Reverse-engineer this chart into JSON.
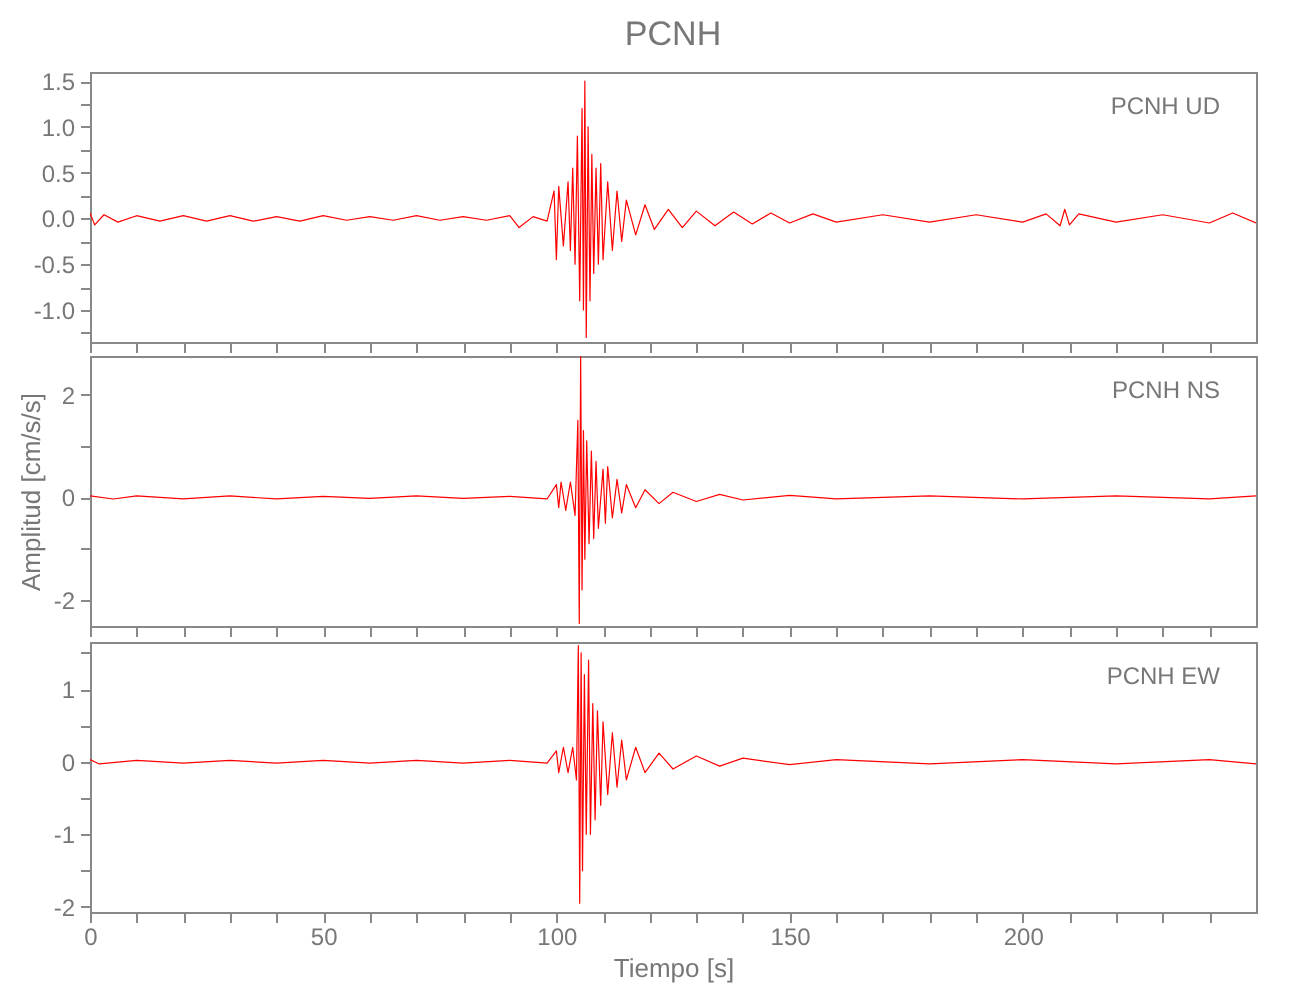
{
  "chart_data": [
    {
      "type": "line",
      "title": "PCNH",
      "annotations": [
        "PCNH UD"
      ],
      "tick_labels": "y",
      "xlim": [
        0,
        250
      ],
      "xticks": [
        0,
        {
          "value": 10,
          "label": null
        },
        {
          "value": 20,
          "label": null
        },
        {
          "value": 30,
          "label": null
        },
        {
          "value": 40,
          "label": null
        },
        50,
        {
          "value": 60,
          "label": null
        },
        {
          "value": 70,
          "label": null
        },
        {
          "value": 80,
          "label": null
        },
        {
          "value": 90,
          "label": null
        },
        100,
        {
          "value": 110,
          "label": null
        },
        {
          "value": 120,
          "label": null
        },
        {
          "value": 130,
          "label": null
        },
        {
          "value": 140,
          "label": null
        },
        150,
        {
          "value": 160,
          "label": null
        },
        {
          "value": 170,
          "label": null
        },
        {
          "value": 180,
          "label": null
        },
        {
          "value": 190,
          "label": null
        },
        200,
        {
          "value": 210,
          "label": null
        },
        {
          "value": 220,
          "label": null
        },
        {
          "value": 230,
          "label": null
        },
        {
          "value": 240,
          "label": null
        }
      ],
      "ylim": [
        -1.35,
        1.6
      ],
      "yticks": [
        {
          "value": -1.25,
          "label": null
        },
        {
          "value": -1,
          "label": "-1.0"
        },
        {
          "value": -0.75,
          "label": null
        },
        {
          "value": -0.5,
          "label": "-0.5"
        },
        {
          "value": -0.25,
          "label": null
        },
        {
          "value": 0,
          "label": "0.0"
        },
        {
          "value": 0.25,
          "label": null
        },
        0.5,
        {
          "value": 0.75,
          "label": null
        },
        {
          "value": 1,
          "label": "1.0"
        },
        {
          "value": 1.25,
          "label": null
        },
        1.5
      ],
      "series": [
        {
          "color": "#ff0000",
          "x": [
            0,
            1,
            3,
            6,
            10,
            15,
            20,
            25,
            30,
            35,
            40,
            45,
            50,
            55,
            60,
            65,
            70,
            75,
            80,
            85,
            90,
            92,
            95,
            98,
            99.5,
            100,
            100.5,
            101.5,
            102.5,
            103,
            103.5,
            104,
            104.5,
            105,
            105.5,
            105.8,
            106.1,
            106.4,
            106.8,
            107.2,
            107.6,
            108,
            108.5,
            109,
            109.5,
            110,
            111,
            112,
            113,
            114,
            115,
            117,
            119,
            121,
            124,
            127,
            130,
            134,
            138,
            142,
            146,
            150,
            155,
            160,
            170,
            180,
            190,
            200,
            205,
            208,
            209,
            210,
            212,
            220,
            230,
            240,
            245,
            250
          ],
          "values": [
            0.06,
            -0.07,
            0.04,
            -0.04,
            0.03,
            -0.03,
            0.03,
            -0.03,
            0.03,
            -0.03,
            0.02,
            -0.03,
            0.03,
            -0.02,
            0.02,
            -0.02,
            0.03,
            -0.02,
            0.02,
            -0.02,
            0.03,
            -0.1,
            0.02,
            -0.03,
            0.3,
            -0.45,
            0.35,
            -0.3,
            0.4,
            -0.35,
            0.55,
            -0.5,
            0.9,
            -0.9,
            1.2,
            -1.0,
            1.5,
            -1.3,
            1.0,
            -0.9,
            0.7,
            -0.6,
            0.55,
            -0.5,
            0.6,
            -0.45,
            0.4,
            -0.35,
            0.3,
            -0.25,
            0.2,
            -0.18,
            0.15,
            -0.12,
            0.1,
            -0.1,
            0.08,
            -0.08,
            0.07,
            -0.06,
            0.06,
            -0.05,
            0.05,
            -0.04,
            0.04,
            -0.04,
            0.04,
            -0.04,
            0.05,
            -0.08,
            0.1,
            -0.07,
            0.05,
            -0.04,
            0.04,
            -0.05,
            0.06,
            -0.05
          ]
        }
      ]
    },
    {
      "type": "line",
      "ylabel": "Amplitud [cm/s/s]",
      "annotations": [
        "PCNH NS"
      ],
      "tick_labels": "y",
      "xlim": [
        0,
        250
      ],
      "xticks": [
        0,
        {
          "value": 10,
          "label": null
        },
        {
          "value": 20,
          "label": null
        },
        {
          "value": 30,
          "label": null
        },
        {
          "value": 40,
          "label": null
        },
        50,
        {
          "value": 60,
          "label": null
        },
        {
          "value": 70,
          "label": null
        },
        {
          "value": 80,
          "label": null
        },
        {
          "value": 90,
          "label": null
        },
        100,
        {
          "value": 110,
          "label": null
        },
        {
          "value": 120,
          "label": null
        },
        {
          "value": 130,
          "label": null
        },
        {
          "value": 140,
          "label": null
        },
        150,
        {
          "value": 160,
          "label": null
        },
        {
          "value": 170,
          "label": null
        },
        {
          "value": 180,
          "label": null
        },
        {
          "value": 190,
          "label": null
        },
        200,
        {
          "value": 210,
          "label": null
        },
        {
          "value": 220,
          "label": null
        },
        {
          "value": 230,
          "label": null
        },
        {
          "value": 240,
          "label": null
        }
      ],
      "ylim": [
        -2.5,
        2.75
      ],
      "yticks": [
        -2,
        {
          "value": -1,
          "label": null
        },
        0,
        {
          "value": 1,
          "label": null
        },
        2
      ],
      "series": [
        {
          "color": "#ff0000",
          "x": [
            0,
            5,
            10,
            20,
            30,
            40,
            50,
            60,
            70,
            80,
            90,
            98,
            100,
            100.5,
            101,
            102,
            103,
            104,
            104.6,
            104.9,
            105.2,
            105.5,
            105.8,
            106.1,
            106.5,
            107,
            107.5,
            108,
            108.5,
            109,
            110,
            110.5,
            111,
            112,
            113,
            114,
            115,
            117,
            119,
            122,
            125,
            130,
            135,
            140,
            150,
            160,
            180,
            200,
            220,
            240,
            250
          ],
          "values": [
            0.03,
            -0.03,
            0.03,
            -0.03,
            0.03,
            -0.03,
            0.02,
            -0.02,
            0.03,
            -0.02,
            0.02,
            -0.03,
            0.25,
            -0.2,
            0.3,
            -0.25,
            0.3,
            -0.35,
            1.5,
            -2.45,
            2.75,
            -1.8,
            1.3,
            -1.2,
            1.1,
            -0.9,
            0.9,
            -0.8,
            0.7,
            -0.6,
            0.55,
            -0.5,
            0.6,
            -0.4,
            0.35,
            -0.3,
            0.25,
            -0.2,
            0.15,
            -0.12,
            0.1,
            -0.08,
            0.06,
            -0.05,
            0.04,
            -0.03,
            0.03,
            -0.03,
            0.03,
            -0.03,
            0.03
          ]
        }
      ]
    },
    {
      "type": "line",
      "xlabel": "Tiempo [s]",
      "annotations": [
        "PCNH EW"
      ],
      "xlim": [
        0,
        250
      ],
      "xticks": [
        0,
        {
          "value": 10,
          "label": null
        },
        {
          "value": 20,
          "label": null
        },
        {
          "value": 30,
          "label": null
        },
        {
          "value": 40,
          "label": null
        },
        50,
        {
          "value": 60,
          "label": null
        },
        {
          "value": 70,
          "label": null
        },
        {
          "value": 80,
          "label": null
        },
        {
          "value": 90,
          "label": null
        },
        100,
        {
          "value": 110,
          "label": null
        },
        {
          "value": 120,
          "label": null
        },
        {
          "value": 130,
          "label": null
        },
        {
          "value": 140,
          "label": null
        },
        150,
        {
          "value": 160,
          "label": null
        },
        {
          "value": 170,
          "label": null
        },
        {
          "value": 180,
          "label": null
        },
        {
          "value": 190,
          "label": null
        },
        200,
        {
          "value": 210,
          "label": null
        },
        {
          "value": 220,
          "label": null
        },
        {
          "value": 230,
          "label": null
        },
        {
          "value": 240,
          "label": null
        }
      ],
      "ylim": [
        -2.07,
        1.65
      ],
      "yticks": [
        -2,
        {
          "value": -1.5,
          "label": null
        },
        -1,
        {
          "value": -0.5,
          "label": null
        },
        0,
        {
          "value": 0.5,
          "label": null
        },
        1,
        {
          "value": 1.5,
          "label": null
        }
      ],
      "series": [
        {
          "color": "#ff0000",
          "x": [
            0,
            2,
            10,
            20,
            30,
            40,
            50,
            60,
            70,
            80,
            90,
            98,
            100,
            100.5,
            101.5,
            102.5,
            103.5,
            104.3,
            104.7,
            105,
            105.3,
            105.6,
            106,
            106.4,
            106.9,
            107.3,
            107.8,
            108.3,
            108.8,
            109.5,
            110,
            111,
            112,
            113,
            114,
            115,
            117,
            119,
            122,
            125,
            130,
            135,
            140,
            150,
            160,
            180,
            200,
            220,
            240,
            250
          ],
          "values": [
            0.03,
            -0.03,
            0.02,
            -0.02,
            0.02,
            -0.02,
            0.02,
            -0.02,
            0.02,
            -0.02,
            0.02,
            -0.02,
            0.15,
            -0.15,
            0.2,
            -0.15,
            0.2,
            -0.25,
            1.6,
            -1.95,
            1.5,
            -1.5,
            1.2,
            -1.0,
            1.4,
            -1.0,
            0.8,
            -0.8,
            0.7,
            -0.6,
            0.55,
            -0.45,
            0.4,
            -0.35,
            0.3,
            -0.25,
            0.2,
            -0.15,
            0.12,
            -0.1,
            0.08,
            -0.06,
            0.05,
            -0.04,
            0.03,
            -0.03,
            0.03,
            -0.03,
            0.03,
            -0.03
          ]
        }
      ]
    }
  ]
}
